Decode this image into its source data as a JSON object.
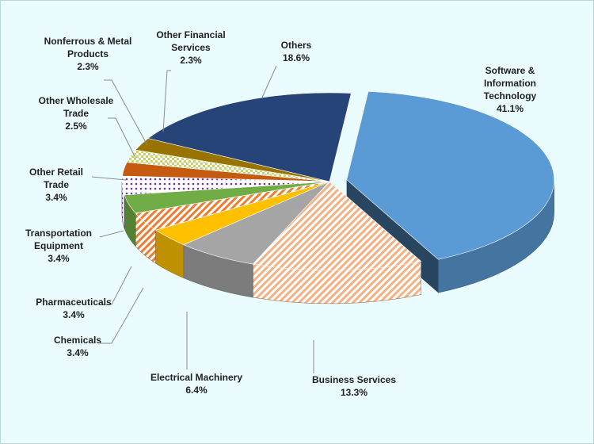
{
  "chart_data": {
    "type": "pie3d",
    "categories": [
      "Software & Information Technology",
      "Business Services",
      "Electrical Machinery",
      "Chemicals",
      "Pharmaceuticals",
      "Transportation Equipment",
      "Other Retail Trade",
      "Other Wholesale Trade",
      "Nonferrous & Metal Products",
      "Other Financial Services",
      "Others"
    ],
    "values": [
      41.1,
      13.3,
      6.4,
      3.4,
      3.4,
      3.4,
      3.4,
      2.5,
      2.3,
      2.3,
      18.6
    ],
    "value_labels": [
      "41.1%",
      "13.3%",
      "6.4%",
      "3.4%",
      "3.4%",
      "3.4%",
      "3.4%",
      "2.5%",
      "2.3%",
      "2.3%",
      "18.6%"
    ],
    "colors": [
      "#5b9bd5",
      "#f4b183",
      "#a5a5a5",
      "#ffc000",
      "#ed7d31",
      "#70ad47",
      "#7030a0",
      "#c55a11",
      "#c9d36b",
      "#997300",
      "#264478"
    ],
    "patterns": [
      null,
      "hatch",
      null,
      null,
      "hatch",
      null,
      "dots",
      null,
      "checker",
      null,
      null
    ]
  }
}
